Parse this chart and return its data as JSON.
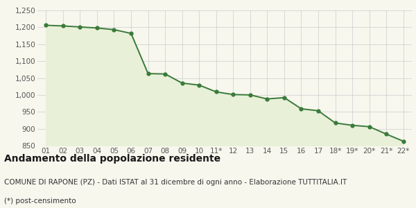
{
  "x_labels": [
    "01",
    "02",
    "03",
    "04",
    "05",
    "06",
    "07",
    "08",
    "09",
    "10",
    "11*",
    "12",
    "13",
    "14",
    "15",
    "16",
    "17",
    "18*",
    "19*",
    "20*",
    "21*",
    "22*"
  ],
  "y_values": [
    1206,
    1204,
    1201,
    1198,
    1193,
    1182,
    1063,
    1062,
    1035,
    1029,
    1009,
    1001,
    1000,
    988,
    992,
    959,
    953,
    917,
    910,
    906,
    884,
    863
  ],
  "line_color": "#3a7a3a",
  "fill_color": "#e8f0d8",
  "marker_color": "#3a7a3a",
  "bg_color": "#f7f7ee",
  "grid_color": "#cccccc",
  "ylim": [
    850,
    1250
  ],
  "yticks": [
    850,
    900,
    950,
    1000,
    1050,
    1100,
    1150,
    1200,
    1250
  ],
  "ytick_labels": [
    "850",
    "900",
    "950",
    "1,000",
    "1,050",
    "1,100",
    "1,150",
    "1,200",
    "1,250"
  ],
  "title": "Andamento della popolazione residente",
  "subtitle": "COMUNE DI RAPONE (PZ) - Dati ISTAT al 31 dicembre di ogni anno - Elaborazione TUTTITALIA.IT",
  "footnote": "(*) post-censimento",
  "title_fontsize": 10,
  "subtitle_fontsize": 7.5,
  "footnote_fontsize": 7.5,
  "tick_fontsize": 7.5,
  "marker_size": 3.5,
  "line_width": 1.4
}
